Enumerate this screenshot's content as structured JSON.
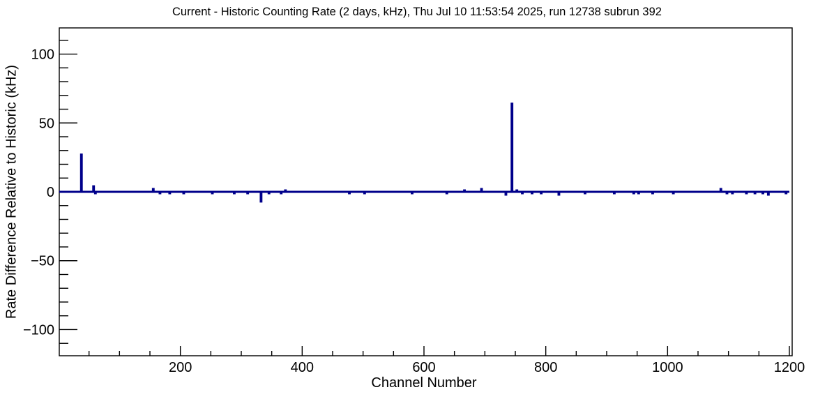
{
  "chart_data": {
    "type": "bar",
    "subtype": "root-step-histogram",
    "title": "Current - Historic Counting Rate (2 days, kHz), Thu Jul 10 11:53:54 2025, run 12738 subrun 392",
    "xlabel": "Channel Number",
    "ylabel": "Rate Difference Relative to Historic (kHz)",
    "xlim": [
      0,
      1200
    ],
    "ylim": [
      -119,
      119
    ],
    "x_major_ticks": [
      200,
      400,
      600,
      800,
      1000,
      1200
    ],
    "x_minor_step": 50,
    "y_major_ticks": [
      -100,
      -50,
      0,
      50,
      100
    ],
    "y_minor_step": 10,
    "grid": false,
    "legend": false,
    "n_channels": 1200,
    "default_bin_value": 0,
    "nonzero_bins": [
      [
        37,
        27
      ],
      [
        57,
        4
      ],
      [
        60,
        -1
      ],
      [
        155,
        2
      ],
      [
        166,
        -1
      ],
      [
        182,
        -1
      ],
      [
        205,
        -1
      ],
      [
        252,
        -1
      ],
      [
        288,
        -1
      ],
      [
        310,
        -1
      ],
      [
        332,
        -7
      ],
      [
        345,
        -1
      ],
      [
        365,
        -1
      ],
      [
        372,
        1
      ],
      [
        477,
        -1
      ],
      [
        502,
        -1
      ],
      [
        580,
        -1
      ],
      [
        637,
        -1
      ],
      [
        666,
        1
      ],
      [
        694,
        2
      ],
      [
        734,
        -2
      ],
      [
        744,
        64
      ],
      [
        752,
        1
      ],
      [
        761,
        -1
      ],
      [
        777,
        -1
      ],
      [
        792,
        -1
      ],
      [
        821,
        -2
      ],
      [
        864,
        -1
      ],
      [
        912,
        -1
      ],
      [
        944,
        -1
      ],
      [
        952,
        -1
      ],
      [
        975,
        -1
      ],
      [
        1009,
        -1
      ],
      [
        1087,
        2
      ],
      [
        1097,
        -1
      ],
      [
        1106,
        -1
      ],
      [
        1129,
        -1
      ],
      [
        1143,
        -1
      ],
      [
        1156,
        -1
      ],
      [
        1165,
        -2
      ],
      [
        1194,
        -1
      ]
    ],
    "colors": {
      "line": "#00008b",
      "axis": "#000000",
      "background": "#ffffff",
      "text": "#000000"
    }
  }
}
